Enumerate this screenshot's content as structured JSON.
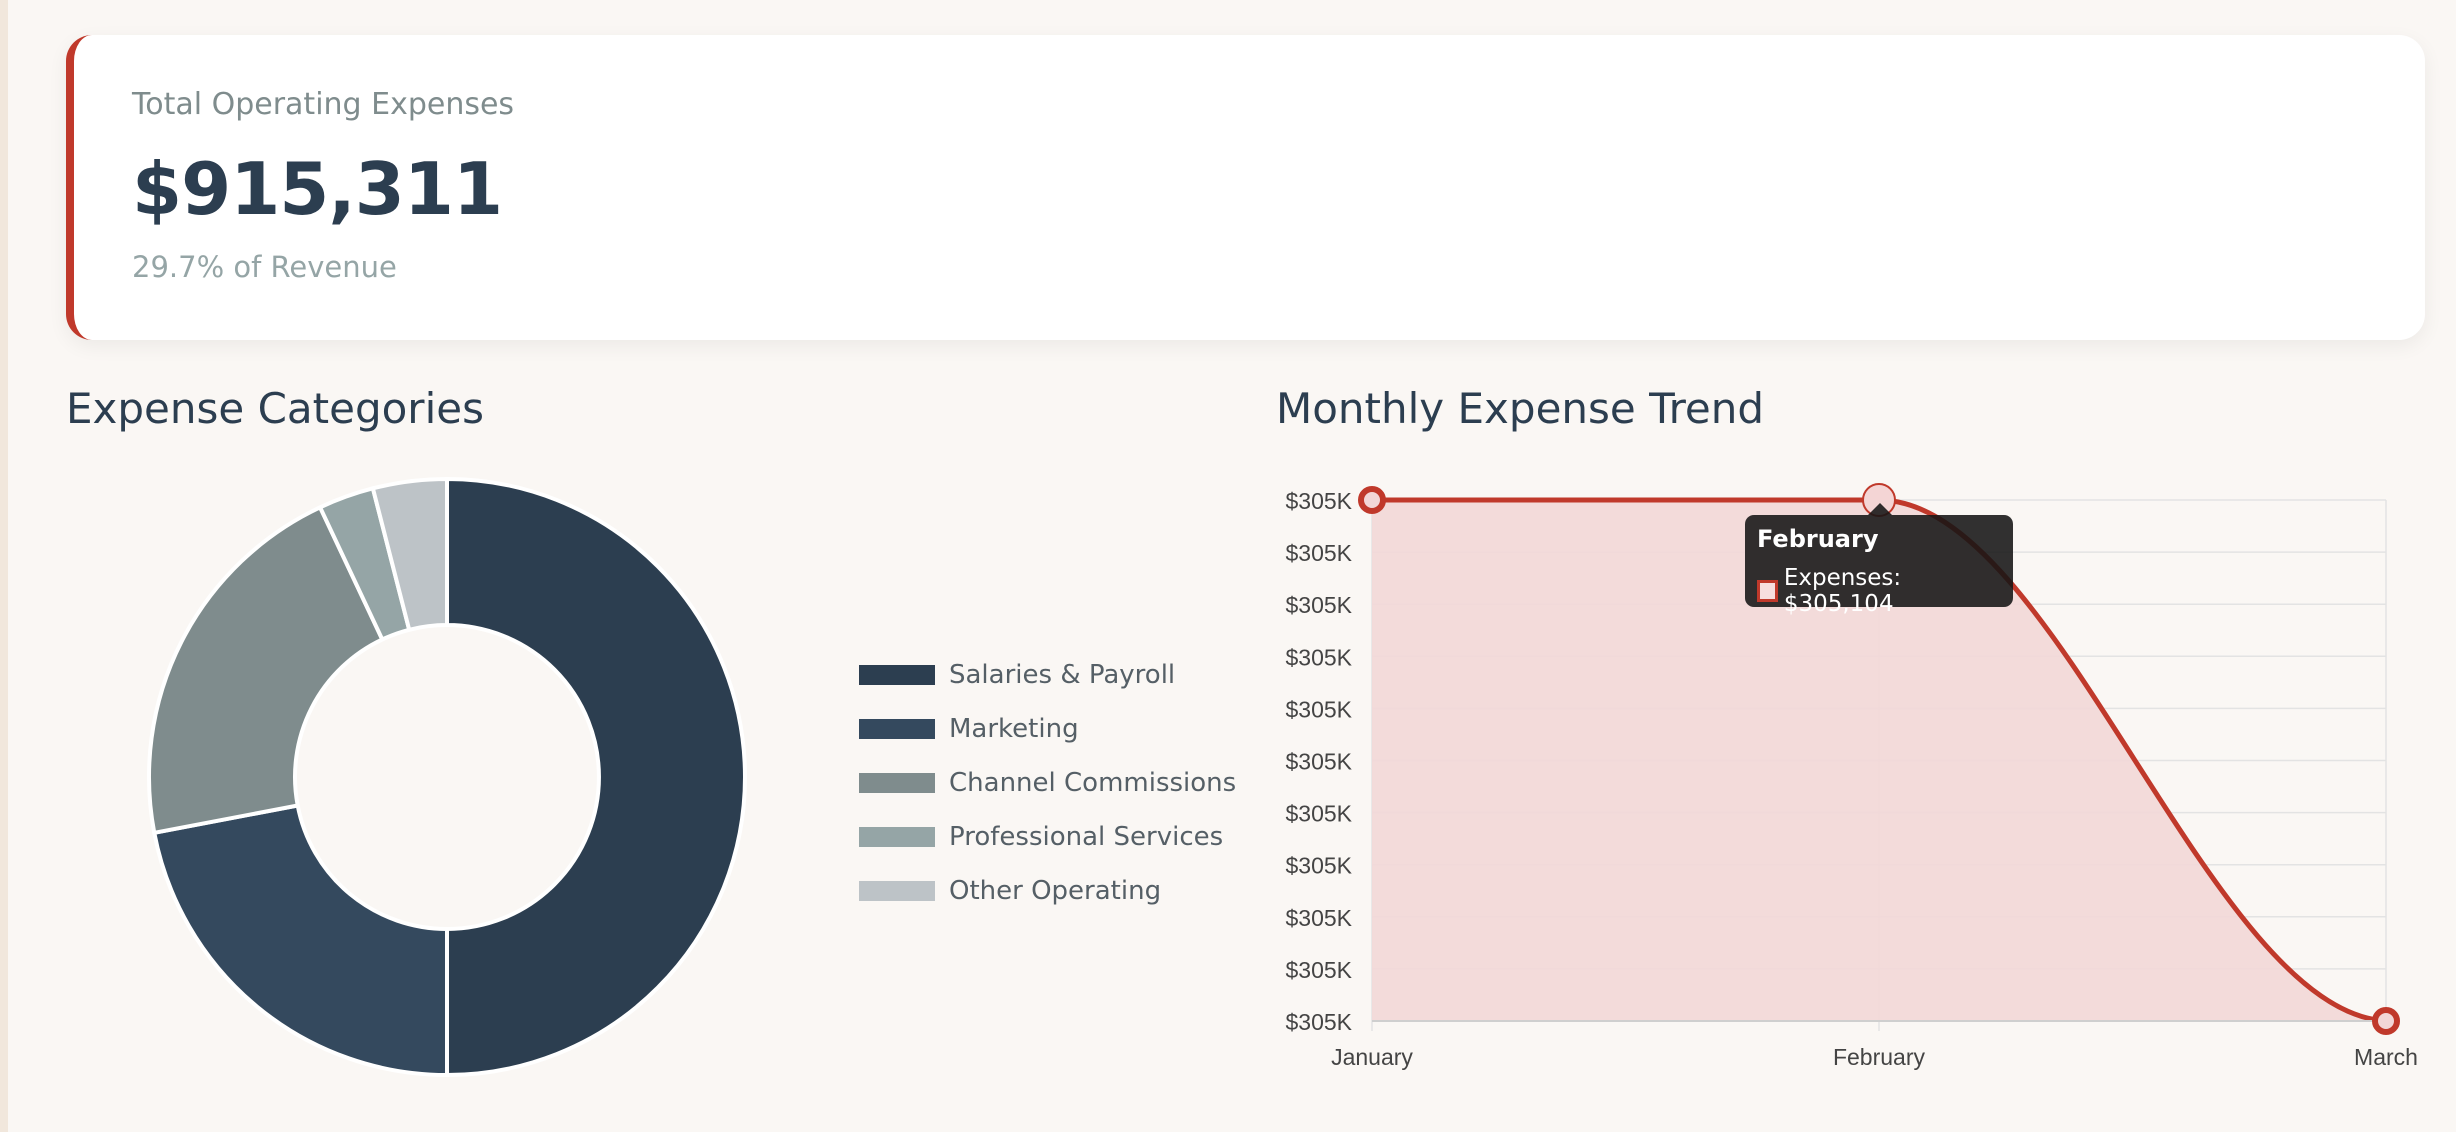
{
  "kpi": {
    "title": "Total Operating Expenses",
    "value": "$915,311",
    "subtitle": "29.7% of Revenue",
    "accent_color": "#c0392b"
  },
  "sections": {
    "donut_title": "Expense Categories",
    "trend_title": "Monthly Expense Trend"
  },
  "tooltip": {
    "title": "February",
    "label": "Expenses: $305,104"
  },
  "chart_data": [
    {
      "type": "pie",
      "variant": "doughnut",
      "title": "Expense Categories",
      "categories": [
        "Salaries & Payroll",
        "Marketing",
        "Channel Commissions",
        "Professional Services",
        "Other Operating"
      ],
      "values": [
        50,
        22,
        21,
        3,
        4
      ],
      "colors": [
        "#2c3e50",
        "#34495e",
        "#7f8c8d",
        "#95a5a6",
        "#bdc3c7"
      ],
      "legend_position": "right"
    },
    {
      "type": "line",
      "title": "Monthly Expense Trend",
      "categories": [
        "January",
        "February",
        "March"
      ],
      "series": [
        {
          "name": "Expenses",
          "values": [
            305104,
            305104,
            305103
          ]
        }
      ],
      "fill": true,
      "line_color": "#c0392b",
      "fill_color": "#f2d7d7",
      "y_tick_labels": [
        "$305K",
        "$305K",
        "$305K",
        "$305K",
        "$305K",
        "$305K",
        "$305K",
        "$305K",
        "$305K",
        "$305K",
        "$305K"
      ],
      "ylim": [
        305103,
        305104
      ],
      "grid": true,
      "legend_position": "none"
    }
  ]
}
